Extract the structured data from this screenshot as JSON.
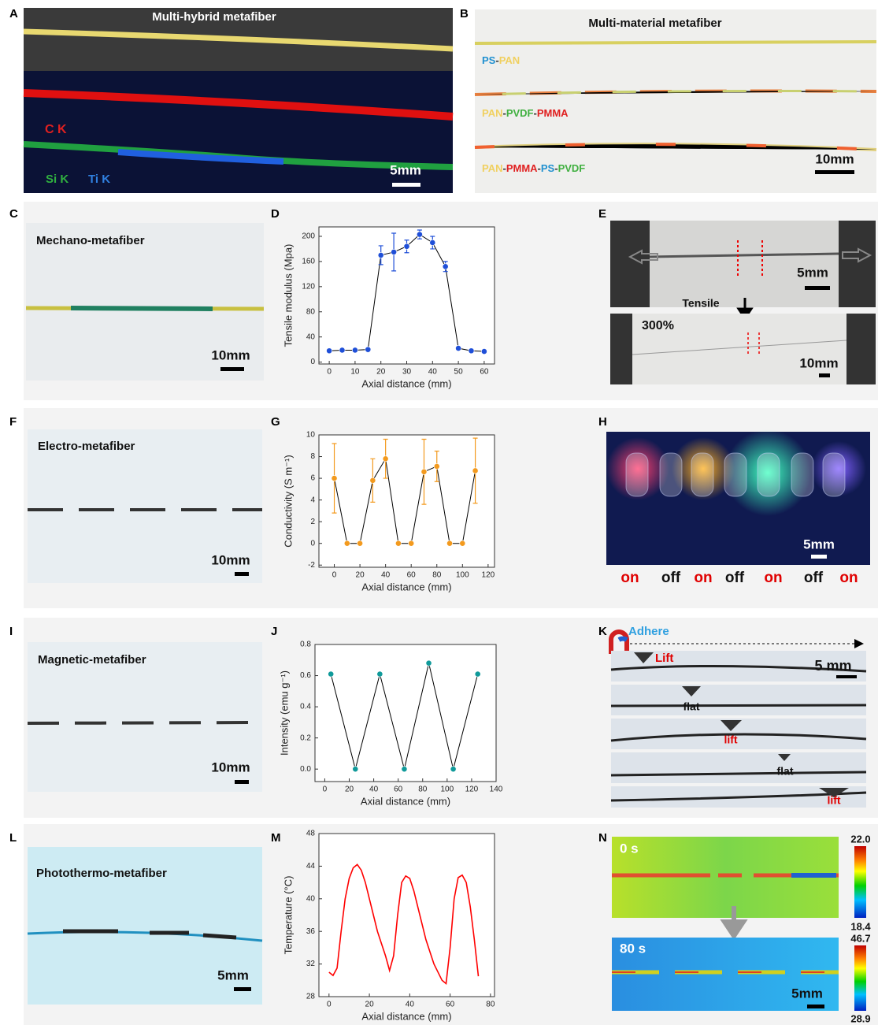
{
  "panels": {
    "A": {
      "label": "A",
      "title": "Multi-hybrid metafiber",
      "elements": [
        "C K",
        "Si K",
        "Ti K"
      ],
      "scale": "5mm"
    },
    "B": {
      "label": "B",
      "title": "Multi-material metafiber",
      "fibers": [
        [
          "PS",
          "-",
          "PAN"
        ],
        [
          "PAN",
          "-",
          "PVDF",
          "-",
          "PMMA"
        ],
        [
          "PAN",
          "-",
          "PMMA",
          "-",
          "PS",
          "-",
          "PVDF"
        ]
      ],
      "scale": "10mm"
    },
    "C": {
      "label": "C",
      "title": "Mechano-metafiber",
      "scale": "10mm"
    },
    "D": {
      "label": "D"
    },
    "E": {
      "label": "E",
      "scale_top": "5mm",
      "arrow": "Tensile",
      "strain": "300%",
      "scale_bottom": "10mm"
    },
    "F": {
      "label": "F",
      "title": "Electro-metafiber",
      "scale": "10mm"
    },
    "G": {
      "label": "G"
    },
    "H": {
      "label": "H",
      "scale": "5mm",
      "states": [
        "on",
        "off",
        "on",
        "off",
        "on",
        "off",
        "on"
      ]
    },
    "I": {
      "label": "I",
      "title": "Magnetic-metafiber",
      "scale": "10mm"
    },
    "J": {
      "label": "J"
    },
    "K": {
      "label": "K",
      "title": "Adhere",
      "scale": "5 mm",
      "states": [
        "Lift",
        "flat",
        "lift",
        "flat",
        "lift"
      ]
    },
    "L": {
      "label": "L",
      "title": "Photothermo-metafiber",
      "scale": "5mm"
    },
    "M": {
      "label": "M"
    },
    "N": {
      "label": "N",
      "time_top": "0 s",
      "max_top": "22.0",
      "min_top": "18.4",
      "time_bottom": "80 s",
      "max_bottom": "46.7",
      "min_bottom": "28.9",
      "scale": "5mm"
    }
  },
  "chart_data": [
    {
      "type": "line",
      "markers": true,
      "color": "#1f4fd8",
      "line_color": "#000000",
      "x_label": "Axial distance (mm)",
      "y_label": "Tensile modulus (Mpa)",
      "x": [
        0,
        5,
        10,
        15,
        20,
        25,
        30,
        35,
        40,
        45,
        50,
        55,
        60
      ],
      "values": [
        18,
        19,
        19,
        20,
        170,
        175,
        184,
        203,
        190,
        152,
        22,
        18,
        17
      ],
      "errors": [
        null,
        null,
        null,
        null,
        15,
        30,
        10,
        7,
        10,
        8,
        null,
        null,
        null
      ],
      "xlim": [
        -4,
        64
      ],
      "xticks": [
        0,
        10,
        20,
        30,
        40,
        50,
        60
      ],
      "ylim": [
        -3,
        215
      ],
      "yticks": [
        0,
        40,
        80,
        120,
        160,
        200
      ]
    },
    {
      "type": "line",
      "markers": true,
      "color": "#f39a1e",
      "line_color": "#000000",
      "x_label": "Axial distance (mm)",
      "y_label": "Conductivity (S m⁻¹)",
      "x": [
        0,
        10,
        20,
        30,
        40,
        50,
        60,
        70,
        80,
        90,
        100,
        110
      ],
      "values": [
        6,
        0,
        0,
        5.8,
        7.8,
        0,
        0,
        6.6,
        7.1,
        0,
        0,
        6.7
      ],
      "errors": [
        3.2,
        null,
        null,
        2,
        1.8,
        null,
        null,
        3,
        1.4,
        null,
        null,
        3
      ],
      "xlim": [
        -12,
        125
      ],
      "xticks": [
        0,
        20,
        40,
        60,
        80,
        100,
        120
      ],
      "ylim": [
        -2.2,
        10
      ],
      "yticks": [
        -2,
        0,
        2,
        4,
        6,
        8,
        10
      ]
    },
    {
      "type": "line",
      "markers": true,
      "color": "#109a9a",
      "line_color": "#000000",
      "x_label": "Axial distance (mm)",
      "y_label": "Intensity (emu g⁻¹)",
      "x": [
        5,
        25,
        45,
        65,
        85,
        105,
        125
      ],
      "values": [
        0.61,
        0,
        0.61,
        0,
        0.68,
        0,
        0.61
      ],
      "xlim": [
        -8,
        140
      ],
      "xticks": [
        0,
        20,
        40,
        60,
        80,
        100,
        120,
        140
      ],
      "ylim": [
        -0.08,
        0.8
      ],
      "yticks": [
        {
          "value": 0,
          "label": "0.0"
        },
        0.2,
        0.4,
        0.6,
        0.8
      ]
    },
    {
      "type": "line",
      "markers": false,
      "color": "#ff0000",
      "line_color": "#ff0000",
      "x_label": "Axial distance (mm)",
      "y_label": "Temperature (°C)",
      "x": [
        0,
        2,
        4,
        6,
        8,
        10,
        12,
        14,
        16,
        18,
        20,
        22,
        24,
        26,
        28,
        30,
        32,
        34,
        36,
        38,
        40,
        42,
        44,
        46,
        48,
        50,
        52,
        54,
        56,
        58,
        60,
        62,
        64,
        66,
        68,
        70,
        72,
        74
      ],
      "values": [
        31,
        30.6,
        31.5,
        36,
        40,
        42.5,
        43.8,
        44.2,
        43.5,
        42,
        40,
        38,
        36,
        34.5,
        33,
        31.2,
        33,
        38,
        42,
        42.8,
        42.5,
        41,
        39,
        37,
        35,
        33.5,
        32,
        31,
        30,
        29.6,
        34,
        40,
        42.6,
        42.9,
        42,
        39,
        35,
        30.5
      ],
      "xlim": [
        -5,
        82
      ],
      "xticks": [
        0,
        20,
        40,
        60,
        80
      ],
      "ylim": [
        28,
        48
      ],
      "yticks": [
        28,
        32,
        36,
        40,
        44,
        48
      ]
    }
  ]
}
